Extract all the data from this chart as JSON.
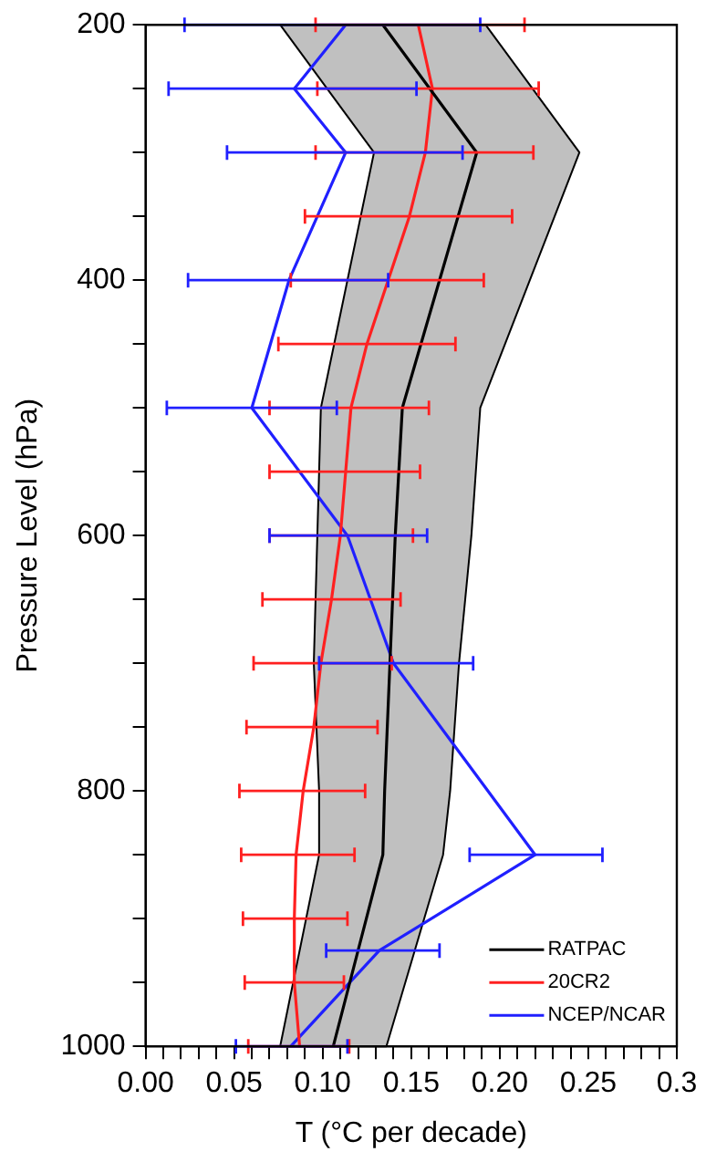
{
  "chart_data": {
    "type": "line",
    "orientation": "horizontal",
    "xlabel": "T (°C per decade)",
    "ylabel": "Pressure Level (hPa)",
    "xlim": [
      0,
      0.3
    ],
    "xticks": [
      {
        "value": 0,
        "label": "0.00"
      },
      {
        "value": 0.01,
        "label": null
      },
      {
        "value": 0.02,
        "label": null
      },
      {
        "value": 0.03,
        "label": null
      },
      {
        "value": 0.04,
        "label": null
      },
      {
        "value": 0.05,
        "label": "0.05"
      },
      {
        "value": 0.06,
        "label": null
      },
      {
        "value": 0.07,
        "label": null
      },
      {
        "value": 0.08,
        "label": null
      },
      {
        "value": 0.09,
        "label": null
      },
      {
        "value": 0.1,
        "label": "0.10"
      },
      {
        "value": 0.11,
        "label": null
      },
      {
        "value": 0.12,
        "label": null
      },
      {
        "value": 0.13,
        "label": null
      },
      {
        "value": 0.14,
        "label": null
      },
      {
        "value": 0.15,
        "label": "0.15"
      },
      {
        "value": 0.16,
        "label": null
      },
      {
        "value": 0.17,
        "label": null
      },
      {
        "value": 0.18,
        "label": null
      },
      {
        "value": 0.19,
        "label": null
      },
      {
        "value": 0.2,
        "label": "0.20"
      },
      {
        "value": 0.21,
        "label": null
      },
      {
        "value": 0.22,
        "label": null
      },
      {
        "value": 0.23,
        "label": null
      },
      {
        "value": 0.24,
        "label": null
      },
      {
        "value": 0.25,
        "label": "0.25"
      },
      {
        "value": 0.26,
        "label": null
      },
      {
        "value": 0.27,
        "label": null
      },
      {
        "value": 0.28,
        "label": null
      },
      {
        "value": 0.29,
        "label": null
      },
      0.3
    ],
    "ylim": [
      1000,
      200
    ],
    "yticks": [
      200,
      {
        "value": 250,
        "label": null
      },
      {
        "value": 300,
        "label": null
      },
      {
        "value": 350,
        "label": null
      },
      400,
      {
        "value": 450,
        "label": null
      },
      {
        "value": 500,
        "label": null
      },
      {
        "value": 550,
        "label": null
      },
      600,
      {
        "value": 650,
        "label": null
      },
      {
        "value": 700,
        "label": null
      },
      {
        "value": 750,
        "label": null
      },
      800,
      {
        "value": 850,
        "label": null
      },
      {
        "value": 900,
        "label": null
      },
      {
        "value": 950,
        "label": null
      },
      1000
    ],
    "grid": false,
    "legend": "bottom right",
    "marker": "none",
    "series": [
      {
        "name": "RATPAC",
        "color": "#000000",
        "x": [
          200,
          300,
          400,
          500,
          600,
          700,
          800,
          850,
          925,
          1000
        ],
        "values": [
          0.134,
          0.187,
          0.166,
          0.145,
          0.141,
          0.138,
          0.135,
          0.134,
          0.12,
          0.106
        ],
        "lower": [
          0.076,
          0.129,
          0.114,
          0.099,
          0.097,
          0.095,
          0.098,
          0.098,
          0.087,
          0.076
        ],
        "upper": [
          0.192,
          0.245,
          0.217,
          0.189,
          0.184,
          0.177,
          0.172,
          0.168,
          0.152,
          0.136
        ]
      },
      {
        "name": "20CR2",
        "color": "#ff2020",
        "x": [
          200,
          250,
          300,
          350,
          400,
          450,
          500,
          550,
          600,
          650,
          700,
          750,
          800,
          850,
          900,
          950,
          1000
        ],
        "values": [
          0.154,
          0.162,
          0.158,
          0.149,
          0.137,
          0.125,
          0.116,
          0.113,
          0.11,
          0.105,
          0.099,
          0.095,
          0.089,
          0.085,
          0.084,
          0.084,
          0.087
        ],
        "errors": [
          [
            0.096,
            0.214
          ],
          [
            0.097,
            0.222
          ],
          [
            0.096,
            0.219
          ],
          [
            0.09,
            0.207
          ],
          [
            0.082,
            0.191
          ],
          [
            0.075,
            0.175
          ],
          [
            0.07,
            0.16
          ],
          [
            0.07,
            0.155
          ],
          [
            0.07,
            0.151
          ],
          [
            0.066,
            0.144
          ],
          [
            0.061,
            0.139
          ],
          [
            0.057,
            0.131
          ],
          [
            0.053,
            0.124
          ],
          [
            0.054,
            0.118
          ],
          [
            0.055,
            0.114
          ],
          [
            0.056,
            0.112
          ],
          [
            0.058,
            0.115
          ]
        ]
      },
      {
        "name": "NCEP/NCAR",
        "color": "#2020ff",
        "x": [
          200,
          250,
          300,
          400,
          500,
          600,
          700,
          850,
          925,
          1000
        ],
        "values": [
          0.113,
          0.084,
          0.113,
          0.081,
          0.06,
          0.114,
          0.14,
          0.22,
          0.132,
          0.082
        ],
        "errors": [
          [
            0.022,
            0.189
          ],
          [
            0.013,
            0.153
          ],
          [
            0.046,
            0.179
          ],
          [
            0.024,
            0.137
          ],
          [
            0.012,
            0.108
          ],
          [
            0.07,
            0.159
          ],
          [
            0.098,
            0.185
          ],
          [
            0.183,
            0.258
          ],
          [
            0.102,
            0.166
          ],
          [
            0.051,
            0.114
          ]
        ]
      }
    ]
  }
}
